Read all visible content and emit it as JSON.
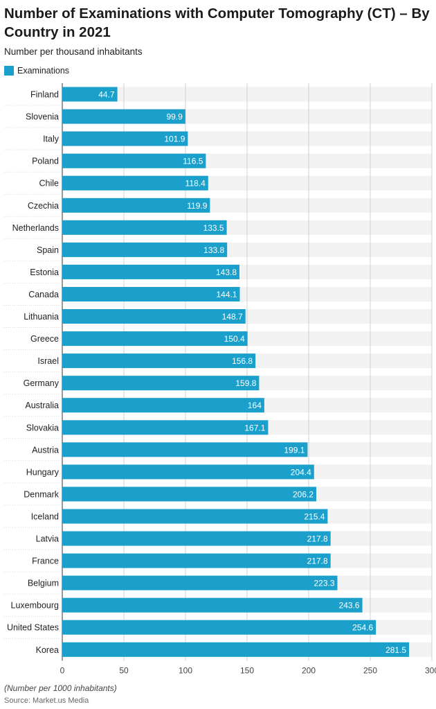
{
  "chart_data": {
    "type": "bar",
    "orientation": "horizontal",
    "title": "Number of Examinations with Computer Tomography (CT) – By Country in 2021",
    "subtitle": "Number per thousand inhabitants",
    "categories": [
      "Finland",
      "Slovenia",
      "Italy",
      "Poland",
      "Chile",
      "Czechia",
      "Netherlands",
      "Spain",
      "Estonia",
      "Canada",
      "Lithuania",
      "Greece",
      "Israel",
      "Germany",
      "Australia",
      "Slovakia",
      "Austria",
      "Hungary",
      "Denmark",
      "Iceland",
      "Latvia",
      "France",
      "Belgium",
      "Luxembourg",
      "United States",
      "Korea"
    ],
    "series": [
      {
        "name": "Examinations",
        "color": "#1ba0cc",
        "values": [
          44.7,
          99.9,
          101.9,
          116.5,
          118.4,
          119.9,
          133.5,
          133.8,
          143.8,
          144.1,
          148.7,
          150.4,
          156.8,
          159.8,
          164,
          167.1,
          199.1,
          204.4,
          206.2,
          215.4,
          217.8,
          217.8,
          223.3,
          243.6,
          254.6,
          281.5
        ]
      }
    ],
    "value_labels": [
      "44.7",
      "99.9",
      "101.9",
      "116.5",
      "118.4",
      "119.9",
      "133.5",
      "133.8",
      "143.8",
      "144.1",
      "148.7",
      "150.4",
      "156.8",
      "159.8",
      "164",
      "167.1",
      "199.1",
      "204.4",
      "206.2",
      "215.4",
      "217.8",
      "217.8",
      "223.3",
      "243.6",
      "254.6",
      "281.5"
    ],
    "xlim": [
      0,
      300
    ],
    "x_ticks": [
      "0",
      "50",
      "100",
      "150",
      "200",
      "250",
      "300"
    ],
    "grid": true,
    "legend_position": "top-left",
    "footnote": "(Number per 1000 inhabitants)",
    "source": "Source: Market.us Media"
  }
}
